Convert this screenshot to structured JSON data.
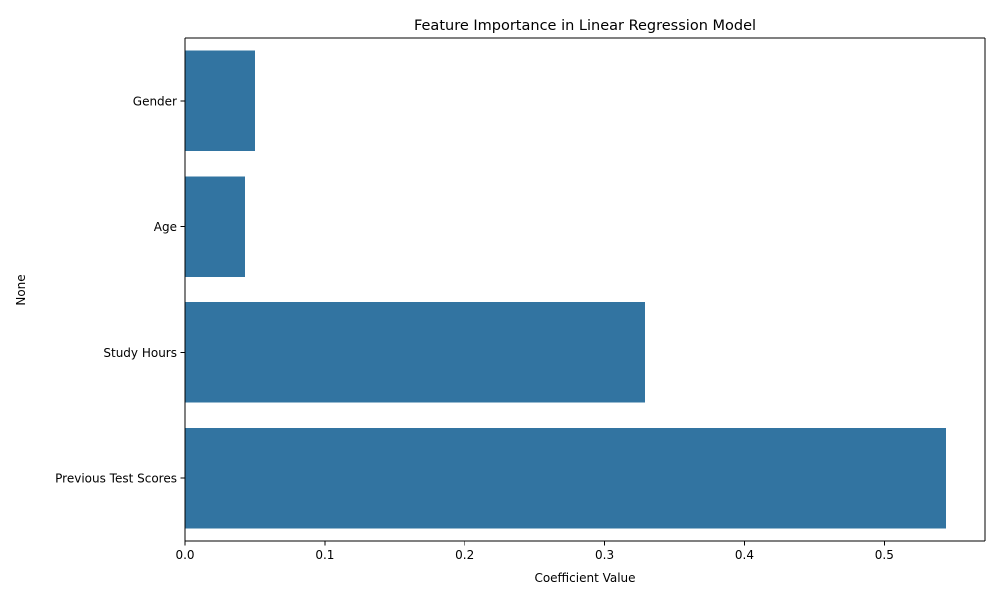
{
  "chart_data": {
    "type": "bar",
    "orientation": "horizontal",
    "title": "Feature Importance in Linear Regression Model",
    "xlabel": "Coefficient Value",
    "ylabel": "None",
    "categories": [
      "Gender",
      "Age",
      "Study Hours",
      "Previous Test Scores"
    ],
    "values": [
      0.05,
      0.043,
      0.329,
      0.544
    ],
    "xlim": [
      0,
      0.572
    ],
    "xticks": [
      0.0,
      0.1,
      0.2,
      0.3,
      0.4,
      0.5
    ],
    "xtick_labels": [
      "0.0",
      "0.1",
      "0.2",
      "0.3",
      "0.4",
      "0.5"
    ],
    "bar_color": "#3274a1",
    "grid": false,
    "legend": "none"
  }
}
